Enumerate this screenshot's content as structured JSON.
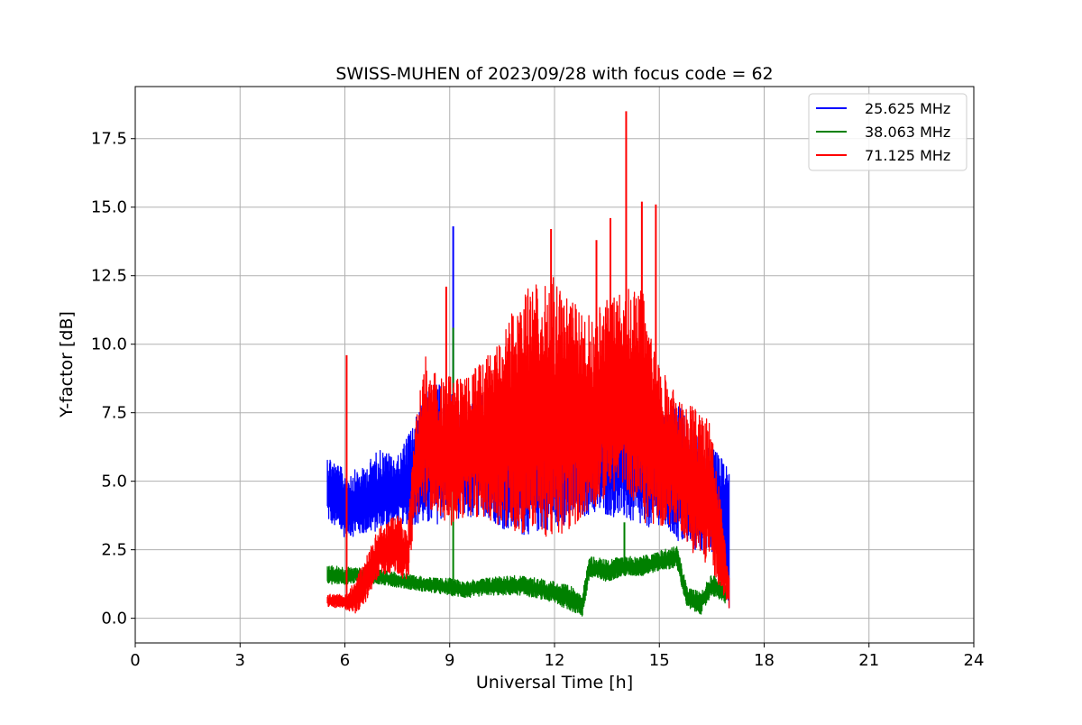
{
  "chart_data": {
    "type": "line",
    "title": "SWISS-MUHEN of 2023/09/28 with focus code = 62",
    "xlabel": "Universal Time [h]",
    "ylabel": "Y-factor [dB]",
    "xlim": [
      0,
      24
    ],
    "ylim": [
      -0.9,
      19.4
    ],
    "xticks": [
      0,
      3,
      6,
      9,
      12,
      15,
      18,
      21,
      24
    ],
    "yticks": [
      0.0,
      2.5,
      5.0,
      7.5,
      10.0,
      12.5,
      15.0,
      17.5
    ],
    "xtick_labels": [
      "0",
      "3",
      "6",
      "9",
      "12",
      "15",
      "18",
      "21",
      "24"
    ],
    "ytick_labels": [
      "0.0",
      "2.5",
      "5.0",
      "7.5",
      "10.0",
      "12.5",
      "15.0",
      "17.5"
    ],
    "grid": true,
    "legend_position": "top-right",
    "series": [
      {
        "name": "25.625 MHz",
        "color": "#0000ff",
        "envelope": [
          {
            "x": 5.5,
            "lo": 3.4,
            "hi": 6.2
          },
          {
            "x": 6.0,
            "lo": 2.8,
            "hi": 5.5
          },
          {
            "x": 6.5,
            "lo": 2.9,
            "hi": 5.6
          },
          {
            "x": 7.0,
            "lo": 3.0,
            "hi": 6.4
          },
          {
            "x": 7.5,
            "lo": 3.3,
            "hi": 6.0
          },
          {
            "x": 8.0,
            "lo": 3.2,
            "hi": 7.5
          },
          {
            "x": 8.5,
            "lo": 3.0,
            "hi": 9.0
          },
          {
            "x": 9.0,
            "lo": 3.5,
            "hi": 8.5
          },
          {
            "x": 9.5,
            "lo": 3.3,
            "hi": 8.0
          },
          {
            "x": 10.0,
            "lo": 3.5,
            "hi": 8.5
          },
          {
            "x": 10.5,
            "lo": 3.0,
            "hi": 8.5
          },
          {
            "x": 11.0,
            "lo": 2.7,
            "hi": 8.6
          },
          {
            "x": 11.5,
            "lo": 2.8,
            "hi": 9.0
          },
          {
            "x": 12.0,
            "lo": 3.0,
            "hi": 9.0
          },
          {
            "x": 12.5,
            "lo": 3.2,
            "hi": 8.8
          },
          {
            "x": 13.0,
            "lo": 3.5,
            "hi": 9.0
          },
          {
            "x": 13.5,
            "lo": 3.5,
            "hi": 8.5
          },
          {
            "x": 14.0,
            "lo": 3.3,
            "hi": 8.8
          },
          {
            "x": 14.5,
            "lo": 3.0,
            "hi": 8.0
          },
          {
            "x": 15.0,
            "lo": 3.2,
            "hi": 7.5
          },
          {
            "x": 15.5,
            "lo": 2.5,
            "hi": 8.2
          },
          {
            "x": 16.0,
            "lo": 2.2,
            "hi": 7.0
          },
          {
            "x": 16.5,
            "lo": 2.0,
            "hi": 6.5
          },
          {
            "x": 16.8,
            "lo": 2.5,
            "hi": 6.0
          },
          {
            "x": 17.0,
            "lo": 0.0,
            "hi": 6.2
          }
        ],
        "spikes": [
          {
            "x": 9.1,
            "y": 14.3
          }
        ]
      },
      {
        "name": "38.063 MHz",
        "color": "#008000",
        "envelope": [
          {
            "x": 5.5,
            "lo": 1.2,
            "hi": 2.0
          },
          {
            "x": 6.0,
            "lo": 1.2,
            "hi": 1.9
          },
          {
            "x": 6.5,
            "lo": 1.3,
            "hi": 1.9
          },
          {
            "x": 7.0,
            "lo": 1.2,
            "hi": 1.8
          },
          {
            "x": 7.5,
            "lo": 1.1,
            "hi": 1.7
          },
          {
            "x": 8.0,
            "lo": 1.0,
            "hi": 1.6
          },
          {
            "x": 8.5,
            "lo": 0.9,
            "hi": 1.5
          },
          {
            "x": 9.0,
            "lo": 0.8,
            "hi": 1.5
          },
          {
            "x": 9.5,
            "lo": 0.7,
            "hi": 1.4
          },
          {
            "x": 10.0,
            "lo": 0.8,
            "hi": 1.5
          },
          {
            "x": 10.5,
            "lo": 0.8,
            "hi": 1.6
          },
          {
            "x": 11.0,
            "lo": 0.8,
            "hi": 1.6
          },
          {
            "x": 11.5,
            "lo": 0.7,
            "hi": 1.5
          },
          {
            "x": 12.0,
            "lo": 0.5,
            "hi": 1.4
          },
          {
            "x": 12.5,
            "lo": 0.2,
            "hi": 1.2
          },
          {
            "x": 12.8,
            "lo": 0.0,
            "hi": 1.0
          },
          {
            "x": 13.0,
            "lo": 1.4,
            "hi": 2.3
          },
          {
            "x": 13.5,
            "lo": 1.3,
            "hi": 2.2
          },
          {
            "x": 14.0,
            "lo": 1.5,
            "hi": 2.3
          },
          {
            "x": 14.5,
            "lo": 1.5,
            "hi": 2.3
          },
          {
            "x": 15.0,
            "lo": 1.7,
            "hi": 2.5
          },
          {
            "x": 15.5,
            "lo": 1.8,
            "hi": 2.7
          },
          {
            "x": 15.8,
            "lo": 0.3,
            "hi": 1.2
          },
          {
            "x": 16.2,
            "lo": 0.1,
            "hi": 1.0
          },
          {
            "x": 16.5,
            "lo": 0.8,
            "hi": 1.7
          },
          {
            "x": 16.9,
            "lo": 0.5,
            "hi": 1.2
          }
        ],
        "spikes": [
          {
            "x": 9.1,
            "y": 10.6
          },
          {
            "x": 14.0,
            "y": 3.5
          }
        ]
      },
      {
        "name": "71.125 MHz",
        "color": "#ff0000",
        "envelope": [
          {
            "x": 5.5,
            "lo": 0.4,
            "hi": 0.9
          },
          {
            "x": 6.0,
            "lo": 0.3,
            "hi": 0.9
          },
          {
            "x": 6.3,
            "lo": 0.1,
            "hi": 1.5
          },
          {
            "x": 6.6,
            "lo": 0.5,
            "hi": 2.3
          },
          {
            "x": 7.0,
            "lo": 1.5,
            "hi": 3.5
          },
          {
            "x": 7.5,
            "lo": 1.5,
            "hi": 4.0
          },
          {
            "x": 7.8,
            "lo": 1.2,
            "hi": 3.3
          },
          {
            "x": 8.0,
            "lo": 3.5,
            "hi": 7.2
          },
          {
            "x": 8.3,
            "lo": 3.8,
            "hi": 10.0
          },
          {
            "x": 8.7,
            "lo": 3.5,
            "hi": 9.0
          },
          {
            "x": 9.0,
            "lo": 3.0,
            "hi": 9.2
          },
          {
            "x": 9.5,
            "lo": 3.5,
            "hi": 9.3
          },
          {
            "x": 10.0,
            "lo": 3.3,
            "hi": 9.8
          },
          {
            "x": 10.5,
            "lo": 3.0,
            "hi": 10.5
          },
          {
            "x": 11.0,
            "lo": 2.5,
            "hi": 12.5
          },
          {
            "x": 11.5,
            "lo": 2.7,
            "hi": 12.8
          },
          {
            "x": 12.0,
            "lo": 2.2,
            "hi": 13.0
          },
          {
            "x": 12.5,
            "lo": 2.8,
            "hi": 12.0
          },
          {
            "x": 13.0,
            "lo": 3.5,
            "hi": 11.5
          },
          {
            "x": 13.5,
            "lo": 4.0,
            "hi": 12.0
          },
          {
            "x": 14.0,
            "lo": 4.5,
            "hi": 12.5
          },
          {
            "x": 14.5,
            "lo": 3.0,
            "hi": 12.5
          },
          {
            "x": 15.0,
            "lo": 3.0,
            "hi": 9.5
          },
          {
            "x": 15.5,
            "lo": 3.2,
            "hi": 8.5
          },
          {
            "x": 16.0,
            "lo": 2.0,
            "hi": 8.0
          },
          {
            "x": 16.5,
            "lo": 1.5,
            "hi": 7.5
          },
          {
            "x": 17.0,
            "lo": 0.3,
            "hi": 1.5
          }
        ],
        "spikes": [
          {
            "x": 6.05,
            "y": 9.6
          },
          {
            "x": 8.9,
            "y": 12.1
          },
          {
            "x": 11.9,
            "y": 14.2
          },
          {
            "x": 13.2,
            "y": 13.8
          },
          {
            "x": 13.6,
            "y": 14.6
          },
          {
            "x": 14.05,
            "y": 18.5
          },
          {
            "x": 14.5,
            "y": 15.2
          },
          {
            "x": 14.9,
            "y": 15.1
          }
        ]
      }
    ]
  }
}
